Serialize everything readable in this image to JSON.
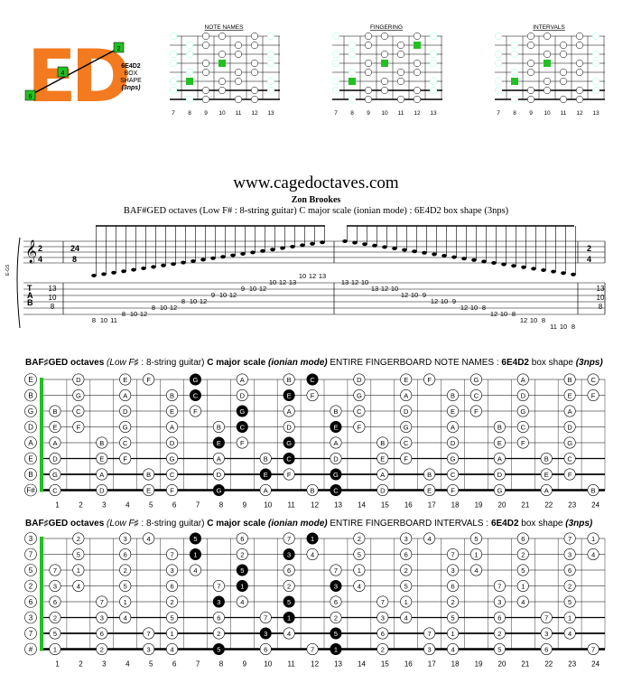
{
  "logo": {
    "text": "ED",
    "shape": "6E4D2",
    "box": "BOX",
    "shape_word": "SHAPE",
    "nps": "(3nps)",
    "markers": [
      "2",
      "4",
      "6"
    ]
  },
  "mini": {
    "titles": [
      "NOTE NAMES",
      "FINGERING",
      "INTERVALS"
    ],
    "frets": [
      "7",
      "8",
      "9",
      "10",
      "11",
      "12",
      "13"
    ]
  },
  "header": {
    "url": "www.cagedoctaves.com",
    "author": "Zon Brookes",
    "subtitle": "BAF#GED octaves (Low F# : 8-string guitar) C major scale (ionian mode) : 6E4D2 box shape (3nps)"
  },
  "tab": {
    "label": "E-GS",
    "time_sig": [
      "2",
      "4"
    ],
    "time_sig2": [
      "24",
      "8"
    ],
    "tab_letters": [
      "T",
      "A",
      "B"
    ],
    "start_numbers": [
      "13",
      "10",
      "8"
    ],
    "end_numbers": [
      "13",
      "10",
      "8"
    ],
    "asc": [
      "8",
      "10",
      "11",
      "8",
      "10",
      "12",
      "8",
      "10",
      "12",
      "8",
      "10",
      "12",
      "9",
      "10",
      "12",
      "9",
      "10",
      "12",
      "10",
      "12",
      "13",
      "10",
      "12",
      "13"
    ],
    "desc": [
      "13",
      "12",
      "10",
      "13",
      "12",
      "10",
      "12",
      "10",
      "9",
      "12",
      "10",
      "9",
      "12",
      "10",
      "8",
      "12",
      "10",
      "8",
      "12",
      "10",
      "8",
      "11",
      "10",
      "8"
    ]
  },
  "fb1": {
    "title_parts": [
      "BAF",
      "♯",
      "GED octaves",
      "(Low F",
      "♯",
      ": 8-string guitar)",
      "C major scale",
      "(ionian mode)",
      "ENTIRE FINGERBOARD  NOTE NAMES :",
      "6E4D2",
      "box shape",
      "(3nps)"
    ],
    "open": [
      "E",
      "B",
      "G",
      "D",
      "A",
      "E",
      "B",
      "F#"
    ],
    "frets": [
      "1",
      "2",
      "3",
      "4",
      "5",
      "6",
      "7",
      "8",
      "9",
      "10",
      "11",
      "12",
      "13",
      "14",
      "15",
      "16",
      "17",
      "18",
      "19",
      "20",
      "21",
      "22",
      "23",
      "24"
    ]
  },
  "fb2": {
    "title_parts": [
      "BAF",
      "♯",
      "GED octaves",
      "(Low F",
      "♯",
      ": 8-string guitar)",
      "C major scale",
      "(ionian mode)",
      "ENTIRE FINGERBOARD  INTERVALS :",
      "6E4D2",
      "box shape",
      "(3nps)"
    ],
    "open": [
      "3",
      "7",
      "5",
      "2",
      "6",
      "3",
      "7",
      "#"
    ],
    "frets": [
      "1",
      "2",
      "3",
      "4",
      "5",
      "6",
      "7",
      "8",
      "9",
      "10",
      "11",
      "12",
      "13",
      "14",
      "15",
      "16",
      "17",
      "18",
      "19",
      "20",
      "21",
      "22",
      "23",
      "24"
    ]
  },
  "colors": {
    "orange": "#f37a1f",
    "green": "#22c022",
    "black": "#000000"
  }
}
